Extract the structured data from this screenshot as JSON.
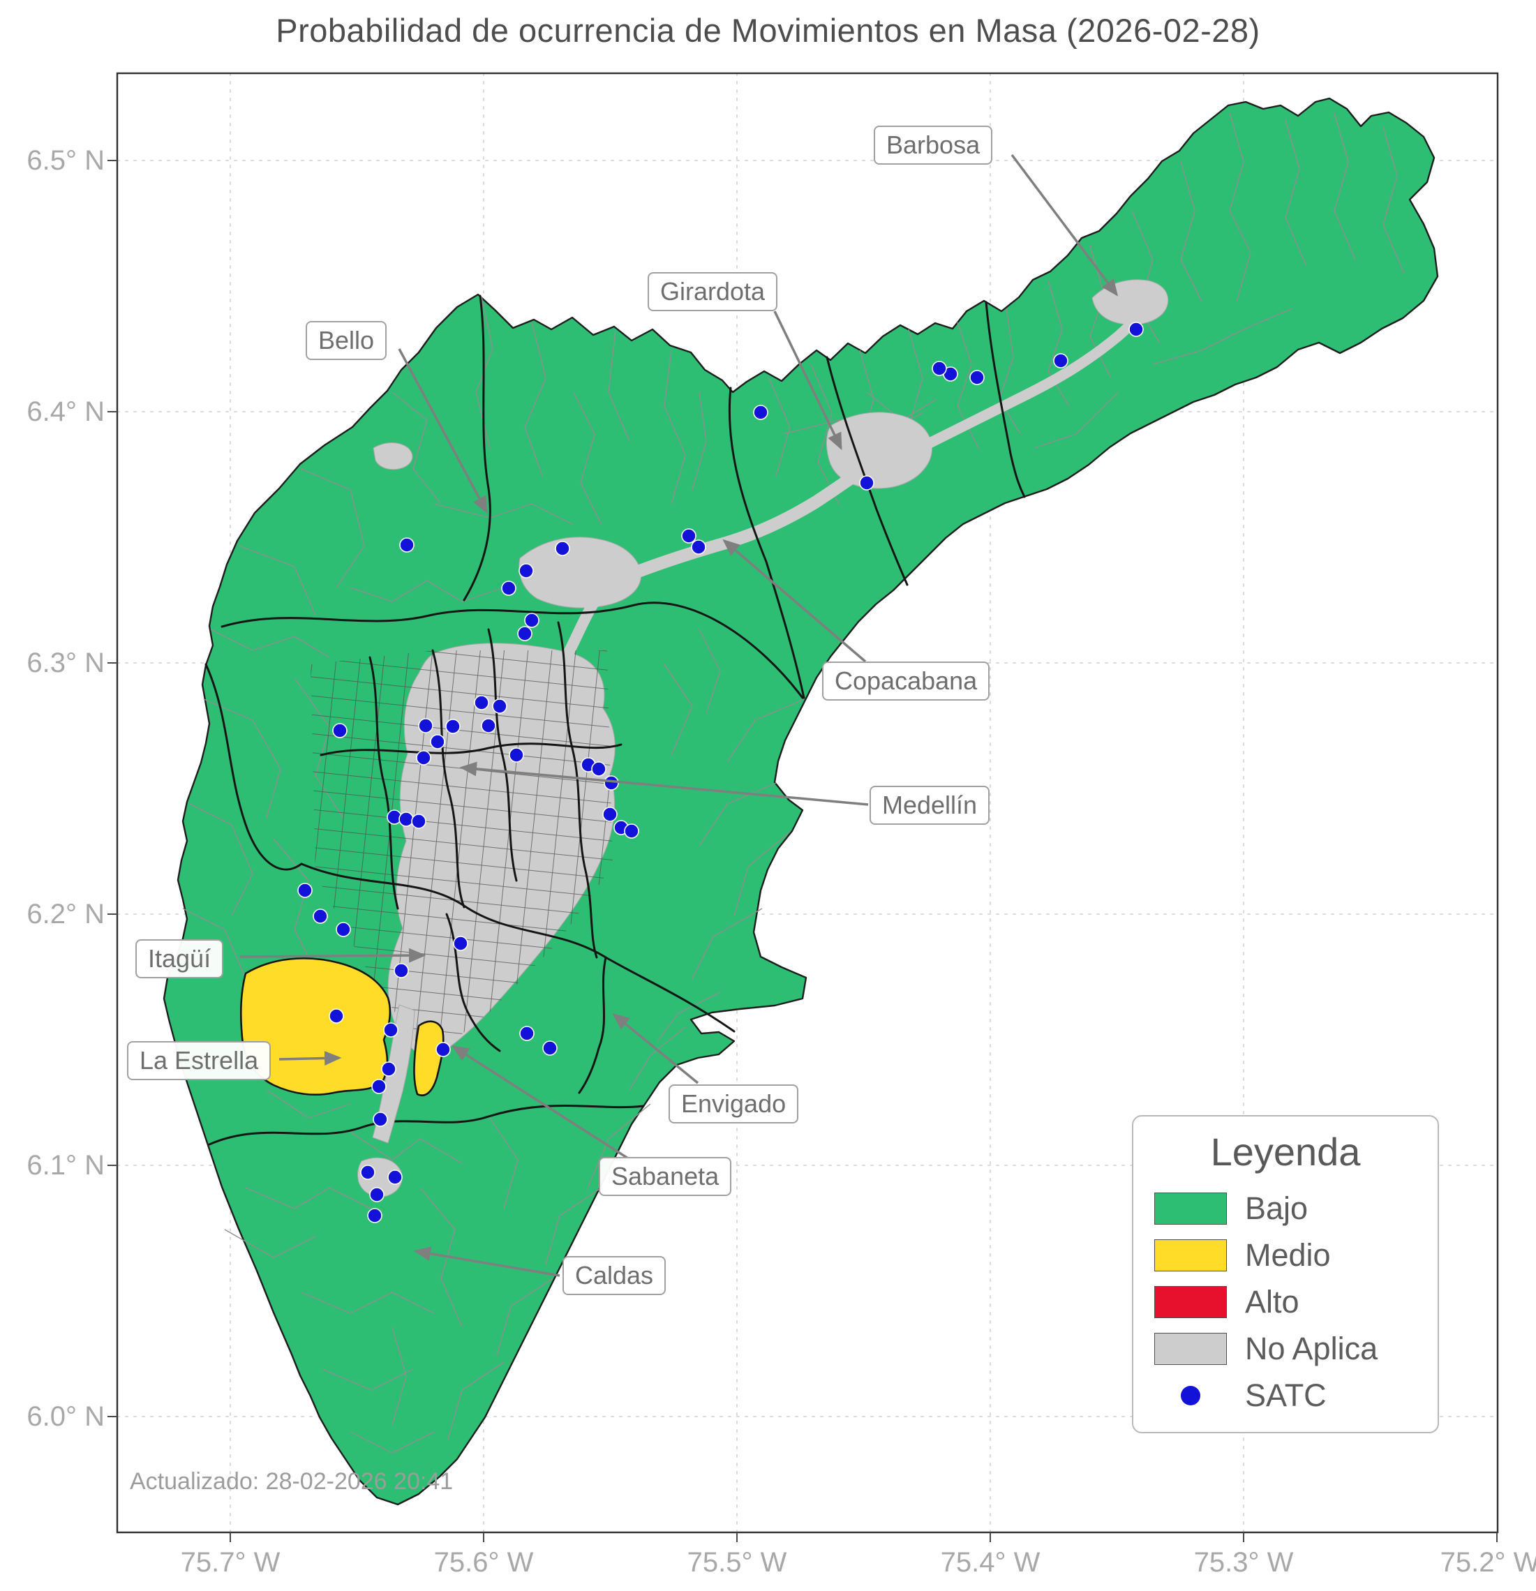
{
  "title": "Probabilidad de ocurrencia de Movimientos en Masa (2026-02-28)",
  "updated": "Actualizado: 28-02-2026 20:41",
  "axes": {
    "x_ticks": [
      "75.7° W",
      "75.6° W",
      "75.5° W",
      "75.4° W",
      "75.3° W",
      "75.2° W"
    ],
    "y_ticks": [
      "6.5° N",
      "6.4° N",
      "6.3° N",
      "6.2° N",
      "6.1° N",
      "6.0° N"
    ]
  },
  "legend": {
    "title": "Leyenda",
    "items": [
      {
        "label": "Bajo",
        "color": "#2dbe73"
      },
      {
        "label": "Medio",
        "color": "#ffdc28"
      },
      {
        "label": "Alto",
        "color": "#e8112d"
      },
      {
        "label": "No Aplica",
        "color": "#cdcdcd"
      },
      {
        "label": "SATC",
        "color": "#1212d8"
      }
    ]
  },
  "callouts": [
    {
      "label": "Barbosa"
    },
    {
      "label": "Girardota"
    },
    {
      "label": "Bello"
    },
    {
      "label": "Copacabana"
    },
    {
      "label": "Medellín"
    },
    {
      "label": "Itagüí"
    },
    {
      "label": "La Estrella"
    },
    {
      "label": "Envigado"
    },
    {
      "label": "Sabaneta"
    },
    {
      "label": "Caldas"
    }
  ],
  "colors": {
    "bajo": "#2dbe73",
    "medio": "#ffdc28",
    "alto": "#e8112d",
    "no_aplica": "#cdcdcd",
    "satc": "#1212d8",
    "municipal_border": "#151515",
    "vereda_border": "#8f8f8f",
    "arrow": "#7f7f7f"
  },
  "satc_points": [
    [
      1628,
      472
    ],
    [
      1520,
      517
    ],
    [
      1400,
      541
    ],
    [
      1362,
      536
    ],
    [
      1346,
      528
    ],
    [
      1242,
      692
    ],
    [
      1090,
      591
    ],
    [
      987,
      768
    ],
    [
      1001,
      784
    ],
    [
      806,
      786
    ],
    [
      754,
      818
    ],
    [
      729,
      843
    ],
    [
      762,
      889
    ],
    [
      752,
      908
    ],
    [
      583,
      781
    ],
    [
      690,
      1007
    ],
    [
      716,
      1012
    ],
    [
      700,
      1040
    ],
    [
      649,
      1041
    ],
    [
      610,
      1040
    ],
    [
      627,
      1063
    ],
    [
      607,
      1086
    ],
    [
      487,
      1047
    ],
    [
      740,
      1082
    ],
    [
      843,
      1096
    ],
    [
      858,
      1102
    ],
    [
      876,
      1122
    ],
    [
      874,
      1167
    ],
    [
      890,
      1186
    ],
    [
      905,
      1191
    ],
    [
      565,
      1171
    ],
    [
      582,
      1174
    ],
    [
      600,
      1177
    ],
    [
      437,
      1276
    ],
    [
      459,
      1313
    ],
    [
      492,
      1332
    ],
    [
      660,
      1352
    ],
    [
      575,
      1391
    ],
    [
      482,
      1456
    ],
    [
      560,
      1476
    ],
    [
      635,
      1504
    ],
    [
      755,
      1481
    ],
    [
      788,
      1502
    ],
    [
      557,
      1532
    ],
    [
      543,
      1557
    ],
    [
      545,
      1604
    ],
    [
      527,
      1680
    ],
    [
      566,
      1687
    ],
    [
      540,
      1712
    ],
    [
      537,
      1742
    ]
  ]
}
